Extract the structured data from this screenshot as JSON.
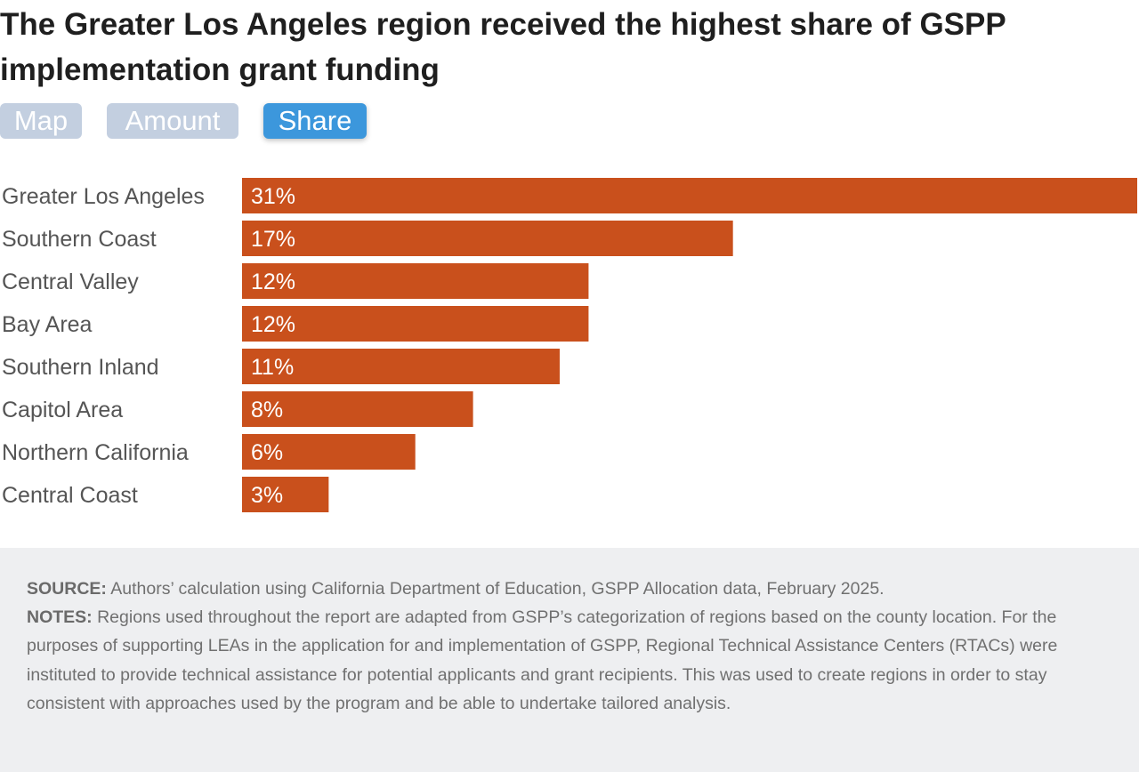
{
  "title": "The Greater Los Angeles region received the highest share of GSPP implementation grant funding",
  "tabs": [
    {
      "label": "Map",
      "active": false
    },
    {
      "label": "Amount",
      "active": false
    },
    {
      "label": "Share",
      "active": true
    }
  ],
  "colors": {
    "bar": "#c9501c",
    "tab_active": "#3c97dc",
    "tab_inactive": "#c3cfe0",
    "footer_bg": "#eeeff1"
  },
  "chart_data": {
    "type": "bar",
    "orientation": "horizontal",
    "categories": [
      "Greater Los Angeles",
      "Southern Coast",
      "Central Valley",
      "Bay Area",
      "Southern Inland",
      "Capitol Area",
      "Northern California",
      "Central Coast"
    ],
    "values": [
      31,
      17,
      12,
      12,
      11,
      8,
      6,
      3
    ],
    "value_labels": [
      "31%",
      "17%",
      "12%",
      "12%",
      "11%",
      "8%",
      "6%",
      "3%"
    ],
    "unit": "%",
    "xlim": [
      0,
      31
    ],
    "grid": false,
    "legend": "none"
  },
  "footer": {
    "source_label": "SOURCE:",
    "source_text": " Authors’ calculation using California Department of Education, GSPP Allocation data, February 2025.",
    "notes_label": "NOTES:",
    "notes_text": " Regions used throughout the report are adapted from GSPP’s categorization of regions based on the county location. For the purposes of supporting LEAs in the application for and implementation of GSPP, Regional Technical Assistance Centers (RTACs) were instituted to provide technical assistance for potential applicants and grant recipients. This was used to create regions in order to stay consistent with approaches used by the program and be able to undertake tailored analysis."
  }
}
